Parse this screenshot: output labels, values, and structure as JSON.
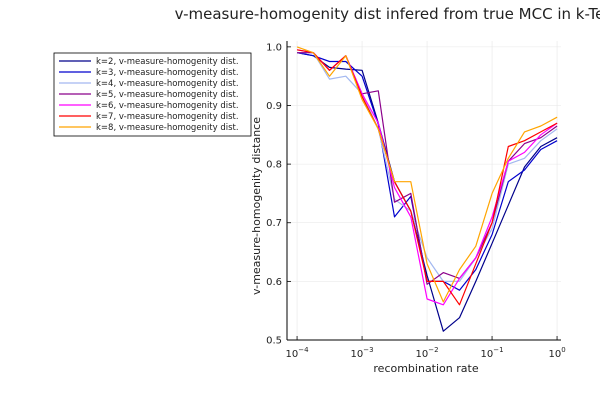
{
  "chart_data": {
    "type": "line",
    "title": "v-measure-homogenity dist infered from true MCC in k-Tesser",
    "xlabel": "recombination rate",
    "ylabel": "v-measure-homogenity distance",
    "xscale": "log10",
    "xlim": [
      7e-05,
      1.15
    ],
    "ylim": [
      0.5,
      1.01
    ],
    "x_ticks": [
      {
        "value": 0.0001,
        "base": "10",
        "exp": "−4"
      },
      {
        "value": 0.001,
        "base": "10",
        "exp": "−3"
      },
      {
        "value": 0.01,
        "base": "10",
        "exp": "−2"
      },
      {
        "value": 0.1,
        "base": "10",
        "exp": "−1"
      },
      {
        "value": 1,
        "base": "10",
        "exp": "0"
      }
    ],
    "y_ticks": [
      {
        "value": 0.5,
        "label": "0.5"
      },
      {
        "value": 0.6,
        "label": "0.6"
      },
      {
        "value": 0.7,
        "label": "0.7"
      },
      {
        "value": 0.8,
        "label": "0.8"
      },
      {
        "value": 0.9,
        "label": "0.9"
      },
      {
        "value": 1.0,
        "label": "1.0"
      }
    ],
    "grid": true,
    "legend": "top-left, outside plot area",
    "x": [
      0.0001,
      0.000178,
      0.000316,
      0.000562,
      0.001,
      0.00178,
      0.00316,
      0.00562,
      0.01,
      0.0178,
      0.0316,
      0.0562,
      0.1,
      0.178,
      0.316,
      0.562,
      1.0
    ],
    "series": [
      {
        "name": "k=2, v-measure-homogenity dist.",
        "color": "#00008b",
        "values": [
          0.99,
          0.985,
          0.965,
          0.962,
          0.96,
          0.87,
          0.77,
          0.72,
          0.61,
          0.515,
          0.538,
          0.6,
          0.665,
          0.73,
          0.795,
          0.83,
          0.845
        ]
      },
      {
        "name": "k=3, v-measure-homogenity dist.",
        "color": "#0000cd",
        "values": [
          0.99,
          0.985,
          0.975,
          0.975,
          0.95,
          0.868,
          0.71,
          0.745,
          0.6,
          0.6,
          0.585,
          0.62,
          0.68,
          0.77,
          0.79,
          0.825,
          0.84
        ]
      },
      {
        "name": "k=4, v-measure-homogenity dist.",
        "color": "#a3b8f0",
        "values": [
          0.99,
          0.99,
          0.945,
          0.95,
          0.92,
          0.86,
          0.74,
          0.72,
          0.64,
          0.6,
          0.6,
          0.64,
          0.69,
          0.8,
          0.81,
          0.84,
          0.86
        ]
      },
      {
        "name": "k=5, v-measure-homogenity dist.",
        "color": "#8b008b",
        "values": [
          0.99,
          0.99,
          0.96,
          0.985,
          0.92,
          0.925,
          0.735,
          0.75,
          0.595,
          0.615,
          0.605,
          0.64,
          0.7,
          0.805,
          0.835,
          0.845,
          0.865
        ]
      },
      {
        "name": "k=6, v-measure-homogenity dist.",
        "color": "#ff00ff",
        "values": [
          0.995,
          0.99,
          0.96,
          0.985,
          0.92,
          0.87,
          0.76,
          0.71,
          0.57,
          0.56,
          0.605,
          0.64,
          0.71,
          0.805,
          0.82,
          0.85,
          0.87
        ]
      },
      {
        "name": "k=7, v-measure-homogenity dist.",
        "color": "#ff0000",
        "values": [
          0.995,
          0.99,
          0.96,
          0.985,
          0.915,
          0.86,
          0.77,
          0.72,
          0.6,
          0.6,
          0.56,
          0.63,
          0.7,
          0.83,
          0.84,
          0.855,
          0.87
        ]
      },
      {
        "name": "k=8, v-measure-homogenity dist.",
        "color": "#ffa500",
        "values": [
          1.0,
          0.99,
          0.95,
          0.985,
          0.91,
          0.86,
          0.77,
          0.77,
          0.63,
          0.565,
          0.62,
          0.66,
          0.75,
          0.81,
          0.855,
          0.865,
          0.88
        ]
      }
    ]
  }
}
